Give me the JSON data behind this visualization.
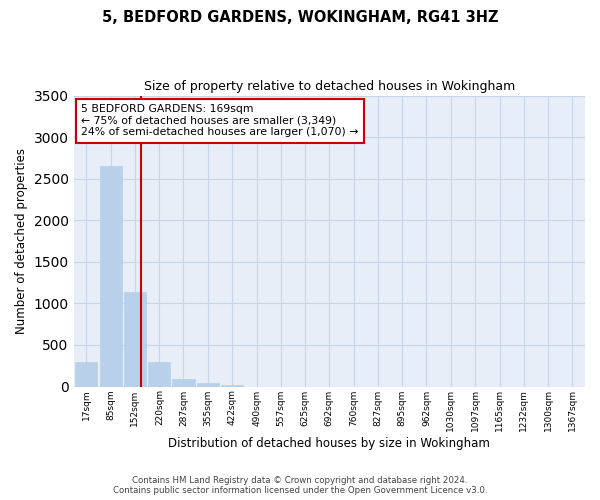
{
  "title": "5, BEDFORD GARDENS, WOKINGHAM, RG41 3HZ",
  "subtitle": "Size of property relative to detached houses in Wokingham",
  "xlabel": "Distribution of detached houses by size in Wokingham",
  "ylabel": "Number of detached properties",
  "bin_labels": [
    "17sqm",
    "85sqm",
    "152sqm",
    "220sqm",
    "287sqm",
    "355sqm",
    "422sqm",
    "490sqm",
    "557sqm",
    "625sqm",
    "692sqm",
    "760sqm",
    "827sqm",
    "895sqm",
    "962sqm",
    "1030sqm",
    "1097sqm",
    "1165sqm",
    "1232sqm",
    "1300sqm",
    "1367sqm"
  ],
  "bin_centers": [
    17,
    85,
    152,
    220,
    287,
    355,
    422,
    490,
    557,
    625,
    692,
    760,
    827,
    895,
    962,
    1030,
    1097,
    1165,
    1232,
    1300,
    1367
  ],
  "bar_values": [
    290,
    2650,
    1140,
    300,
    90,
    40,
    20,
    0,
    0,
    0,
    0,
    0,
    0,
    0,
    0,
    0,
    0,
    0,
    0,
    0,
    0
  ],
  "bar_color": "#b8d0ea",
  "bar_edgecolor": "#b8d0ea",
  "grid_color": "#c8d4e8",
  "background_color": "#e8eef8",
  "property_size": 169,
  "annotation_line1": "5 BEDFORD GARDENS: 169sqm",
  "annotation_line2": "← 75% of detached houses are smaller (3,349)",
  "annotation_line3": "24% of semi-detached houses are larger (1,070) →",
  "red_line_color": "#cc0000",
  "annotation_box_color": "#cc0000",
  "ylim": [
    0,
    3500
  ],
  "yticks": [
    0,
    500,
    1000,
    1500,
    2000,
    2500,
    3000,
    3500
  ],
  "footer_line1": "Contains HM Land Registry data © Crown copyright and database right 2024.",
  "footer_line2": "Contains public sector information licensed under the Open Government Licence v3.0."
}
